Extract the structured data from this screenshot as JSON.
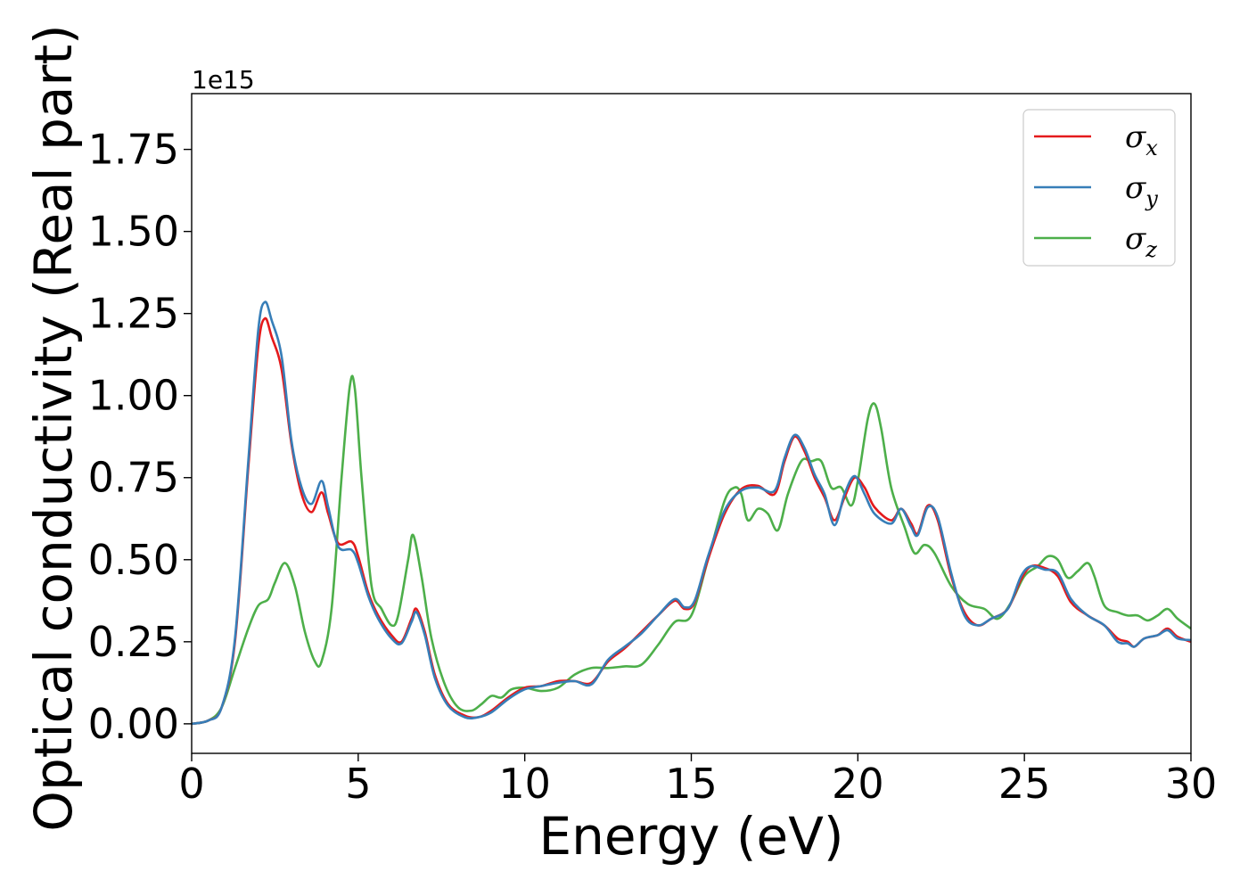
{
  "chart_data": {
    "type": "line",
    "xlabel": "Energy (eV)",
    "ylabel": "Optical conductivity (Real part)",
    "offset_text": "1e15",
    "xlim": [
      0,
      30
    ],
    "ylim": [
      -0.09,
      1.92
    ],
    "x_ticks": [
      0,
      5,
      10,
      15,
      20,
      25,
      30
    ],
    "x_tick_labels": [
      "0",
      "5",
      "10",
      "15",
      "20",
      "25",
      "30"
    ],
    "y_ticks": [
      0.0,
      0.25,
      0.5,
      0.75,
      1.0,
      1.25,
      1.5,
      1.75
    ],
    "y_tick_labels": [
      "0.00",
      "0.25",
      "0.50",
      "0.75",
      "1.00",
      "1.25",
      "1.50",
      "1.75"
    ],
    "grid": false,
    "legend_position": "top-right",
    "series": [
      {
        "name": "σx",
        "color": "#e41a1c",
        "points": [
          [
            0,
            0
          ],
          [
            0.5,
            0.01
          ],
          [
            0.9,
            0.05
          ],
          [
            1.3,
            0.25
          ],
          [
            1.7,
            0.78
          ],
          [
            2.0,
            1.15
          ],
          [
            2.2,
            1.235
          ],
          [
            2.4,
            1.18
          ],
          [
            2.7,
            1.08
          ],
          [
            3.0,
            0.85
          ],
          [
            3.3,
            0.7
          ],
          [
            3.6,
            0.645
          ],
          [
            3.9,
            0.705
          ],
          [
            4.1,
            0.64
          ],
          [
            4.4,
            0.55
          ],
          [
            4.8,
            0.555
          ],
          [
            5.0,
            0.51
          ],
          [
            5.3,
            0.4
          ],
          [
            5.6,
            0.33
          ],
          [
            6.0,
            0.27
          ],
          [
            6.3,
            0.25
          ],
          [
            6.6,
            0.32
          ],
          [
            6.75,
            0.35
          ],
          [
            7.0,
            0.28
          ],
          [
            7.3,
            0.15
          ],
          [
            7.7,
            0.06
          ],
          [
            8.2,
            0.025
          ],
          [
            8.6,
            0.02
          ],
          [
            9.0,
            0.04
          ],
          [
            9.5,
            0.08
          ],
          [
            10.0,
            0.11
          ],
          [
            10.5,
            0.115
          ],
          [
            11.0,
            0.13
          ],
          [
            11.5,
            0.13
          ],
          [
            12.0,
            0.125
          ],
          [
            12.5,
            0.19
          ],
          [
            13.0,
            0.23
          ],
          [
            13.5,
            0.28
          ],
          [
            14.0,
            0.33
          ],
          [
            14.5,
            0.375
          ],
          [
            14.8,
            0.35
          ],
          [
            15.1,
            0.37
          ],
          [
            15.5,
            0.5
          ],
          [
            16.0,
            0.64
          ],
          [
            16.5,
            0.715
          ],
          [
            17.0,
            0.725
          ],
          [
            17.5,
            0.7
          ],
          [
            17.8,
            0.8
          ],
          [
            18.1,
            0.875
          ],
          [
            18.4,
            0.83
          ],
          [
            18.7,
            0.75
          ],
          [
            19.0,
            0.69
          ],
          [
            19.3,
            0.62
          ],
          [
            19.6,
            0.69
          ],
          [
            19.9,
            0.75
          ],
          [
            20.2,
            0.72
          ],
          [
            20.5,
            0.66
          ],
          [
            21.0,
            0.62
          ],
          [
            21.3,
            0.655
          ],
          [
            21.6,
            0.61
          ],
          [
            21.8,
            0.58
          ],
          [
            22.1,
            0.665
          ],
          [
            22.4,
            0.62
          ],
          [
            22.8,
            0.45
          ],
          [
            23.2,
            0.34
          ],
          [
            23.6,
            0.3
          ],
          [
            24.0,
            0.32
          ],
          [
            24.5,
            0.35
          ],
          [
            24.9,
            0.44
          ],
          [
            25.2,
            0.48
          ],
          [
            25.6,
            0.475
          ],
          [
            26.0,
            0.45
          ],
          [
            26.4,
            0.37
          ],
          [
            26.9,
            0.33
          ],
          [
            27.4,
            0.3
          ],
          [
            27.8,
            0.26
          ],
          [
            28.1,
            0.25
          ],
          [
            28.3,
            0.235
          ],
          [
            28.6,
            0.26
          ],
          [
            29.0,
            0.27
          ],
          [
            29.3,
            0.29
          ],
          [
            29.6,
            0.265
          ],
          [
            30.0,
            0.25
          ]
        ]
      },
      {
        "name": "σy",
        "color": "#377eb8",
        "points": [
          [
            0,
            0
          ],
          [
            0.5,
            0.01
          ],
          [
            0.9,
            0.05
          ],
          [
            1.3,
            0.26
          ],
          [
            1.7,
            0.8
          ],
          [
            2.0,
            1.2
          ],
          [
            2.2,
            1.285
          ],
          [
            2.4,
            1.23
          ],
          [
            2.7,
            1.12
          ],
          [
            3.0,
            0.86
          ],
          [
            3.3,
            0.72
          ],
          [
            3.6,
            0.67
          ],
          [
            3.9,
            0.74
          ],
          [
            4.1,
            0.66
          ],
          [
            4.4,
            0.54
          ],
          [
            4.8,
            0.53
          ],
          [
            5.0,
            0.49
          ],
          [
            5.3,
            0.39
          ],
          [
            5.6,
            0.32
          ],
          [
            6.0,
            0.26
          ],
          [
            6.3,
            0.245
          ],
          [
            6.6,
            0.31
          ],
          [
            6.75,
            0.34
          ],
          [
            7.0,
            0.27
          ],
          [
            7.3,
            0.14
          ],
          [
            7.7,
            0.055
          ],
          [
            8.2,
            0.02
          ],
          [
            8.6,
            0.02
          ],
          [
            9.0,
            0.035
          ],
          [
            9.5,
            0.075
          ],
          [
            10.0,
            0.105
          ],
          [
            10.5,
            0.115
          ],
          [
            11.0,
            0.125
          ],
          [
            11.5,
            0.13
          ],
          [
            12.0,
            0.12
          ],
          [
            12.5,
            0.195
          ],
          [
            13.0,
            0.235
          ],
          [
            13.5,
            0.275
          ],
          [
            14.0,
            0.33
          ],
          [
            14.5,
            0.38
          ],
          [
            14.8,
            0.355
          ],
          [
            15.1,
            0.375
          ],
          [
            15.5,
            0.51
          ],
          [
            16.0,
            0.65
          ],
          [
            16.5,
            0.71
          ],
          [
            17.0,
            0.72
          ],
          [
            17.5,
            0.71
          ],
          [
            17.8,
            0.81
          ],
          [
            18.1,
            0.88
          ],
          [
            18.4,
            0.84
          ],
          [
            18.7,
            0.76
          ],
          [
            19.0,
            0.7
          ],
          [
            19.3,
            0.605
          ],
          [
            19.6,
            0.7
          ],
          [
            19.9,
            0.755
          ],
          [
            20.2,
            0.7
          ],
          [
            20.5,
            0.64
          ],
          [
            21.0,
            0.61
          ],
          [
            21.3,
            0.655
          ],
          [
            21.6,
            0.6
          ],
          [
            21.8,
            0.575
          ],
          [
            22.1,
            0.66
          ],
          [
            22.4,
            0.63
          ],
          [
            22.8,
            0.46
          ],
          [
            23.2,
            0.33
          ],
          [
            23.6,
            0.3
          ],
          [
            24.0,
            0.32
          ],
          [
            24.5,
            0.35
          ],
          [
            24.9,
            0.45
          ],
          [
            25.2,
            0.48
          ],
          [
            25.6,
            0.47
          ],
          [
            26.0,
            0.46
          ],
          [
            26.4,
            0.38
          ],
          [
            26.9,
            0.33
          ],
          [
            27.4,
            0.3
          ],
          [
            27.8,
            0.25
          ],
          [
            28.1,
            0.245
          ],
          [
            28.3,
            0.235
          ],
          [
            28.6,
            0.26
          ],
          [
            29.0,
            0.27
          ],
          [
            29.3,
            0.285
          ],
          [
            29.6,
            0.26
          ],
          [
            30.0,
            0.255
          ]
        ]
      },
      {
        "name": "σz",
        "color": "#4daf4a",
        "points": [
          [
            0,
            0
          ],
          [
            0.5,
            0.01
          ],
          [
            0.9,
            0.05
          ],
          [
            1.3,
            0.17
          ],
          [
            1.7,
            0.29
          ],
          [
            2.0,
            0.36
          ],
          [
            2.3,
            0.38
          ],
          [
            2.5,
            0.43
          ],
          [
            2.8,
            0.49
          ],
          [
            3.1,
            0.42
          ],
          [
            3.4,
            0.28
          ],
          [
            3.7,
            0.19
          ],
          [
            3.9,
            0.19
          ],
          [
            4.2,
            0.35
          ],
          [
            4.5,
            0.75
          ],
          [
            4.75,
            1.03
          ],
          [
            4.9,
            1.02
          ],
          [
            5.1,
            0.75
          ],
          [
            5.4,
            0.42
          ],
          [
            5.7,
            0.35
          ],
          [
            6.0,
            0.3
          ],
          [
            6.2,
            0.33
          ],
          [
            6.5,
            0.5
          ],
          [
            6.65,
            0.575
          ],
          [
            6.9,
            0.45
          ],
          [
            7.2,
            0.26
          ],
          [
            7.6,
            0.12
          ],
          [
            8.0,
            0.05
          ],
          [
            8.4,
            0.04
          ],
          [
            8.7,
            0.06
          ],
          [
            9.0,
            0.085
          ],
          [
            9.3,
            0.08
          ],
          [
            9.6,
            0.105
          ],
          [
            10.0,
            0.11
          ],
          [
            10.5,
            0.1
          ],
          [
            11.0,
            0.11
          ],
          [
            11.5,
            0.15
          ],
          [
            12.0,
            0.17
          ],
          [
            12.5,
            0.17
          ],
          [
            13.0,
            0.175
          ],
          [
            13.5,
            0.18
          ],
          [
            14.0,
            0.24
          ],
          [
            14.5,
            0.31
          ],
          [
            15.0,
            0.33
          ],
          [
            15.5,
            0.5
          ],
          [
            16.0,
            0.68
          ],
          [
            16.3,
            0.72
          ],
          [
            16.5,
            0.7
          ],
          [
            16.7,
            0.62
          ],
          [
            17.0,
            0.655
          ],
          [
            17.3,
            0.64
          ],
          [
            17.6,
            0.59
          ],
          [
            17.9,
            0.7
          ],
          [
            18.3,
            0.8
          ],
          [
            18.6,
            0.8
          ],
          [
            18.9,
            0.8
          ],
          [
            19.2,
            0.72
          ],
          [
            19.5,
            0.72
          ],
          [
            19.8,
            0.665
          ],
          [
            20.0,
            0.74
          ],
          [
            20.3,
            0.93
          ],
          [
            20.5,
            0.975
          ],
          [
            20.7,
            0.9
          ],
          [
            21.0,
            0.72
          ],
          [
            21.4,
            0.6
          ],
          [
            21.7,
            0.52
          ],
          [
            22.0,
            0.545
          ],
          [
            22.3,
            0.52
          ],
          [
            22.8,
            0.42
          ],
          [
            23.3,
            0.365
          ],
          [
            23.8,
            0.35
          ],
          [
            24.2,
            0.32
          ],
          [
            24.6,
            0.37
          ],
          [
            25.0,
            0.45
          ],
          [
            25.4,
            0.48
          ],
          [
            25.7,
            0.51
          ],
          [
            26.0,
            0.5
          ],
          [
            26.3,
            0.445
          ],
          [
            26.6,
            0.465
          ],
          [
            26.9,
            0.49
          ],
          [
            27.1,
            0.45
          ],
          [
            27.4,
            0.36
          ],
          [
            27.8,
            0.34
          ],
          [
            28.1,
            0.33
          ],
          [
            28.4,
            0.33
          ],
          [
            28.7,
            0.315
          ],
          [
            29.0,
            0.33
          ],
          [
            29.3,
            0.35
          ],
          [
            29.6,
            0.32
          ],
          [
            30.0,
            0.29
          ]
        ]
      }
    ]
  }
}
